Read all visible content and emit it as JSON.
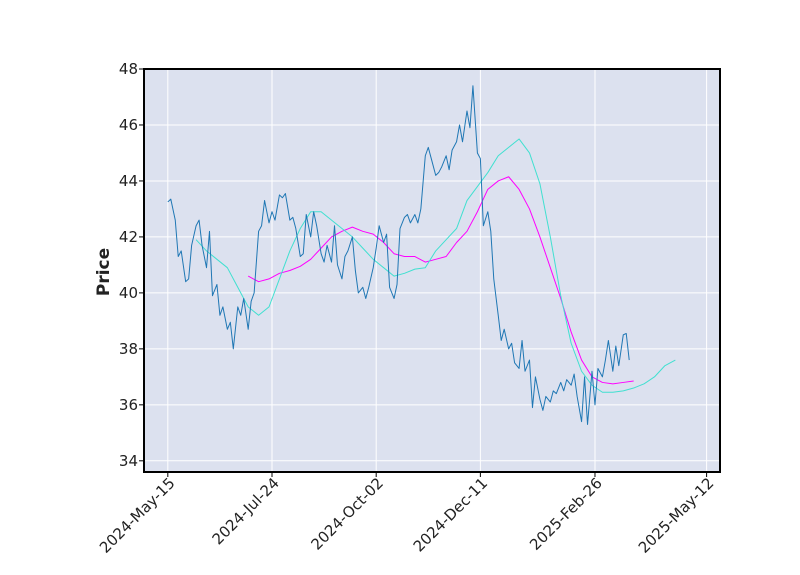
{
  "chart_data": {
    "type": "line",
    "title": "",
    "xlabel": "",
    "ylabel": "Price",
    "ylim": [
      33.6,
      48
    ],
    "yticks": [
      34,
      36,
      38,
      40,
      42,
      44,
      46,
      48
    ],
    "x_range": [
      "2024-04-29",
      "2025-05-21"
    ],
    "xticks": [
      "2024-May-15",
      "2024-Jul-24",
      "2024-Oct-02",
      "2024-Dec-11",
      "2025-Feb-26",
      "2025-May-12"
    ],
    "grid": true,
    "colors": {
      "background": "#dce1ef",
      "grid": "#ffffff",
      "close": "#1f77b4",
      "ma_short": "#40e0d0",
      "ma_long": "#ff00ff"
    },
    "series": [
      {
        "key": "close",
        "points": [
          [
            "2024-05-15",
            43.25
          ],
          [
            "2024-05-17",
            43.35
          ],
          [
            "2024-05-20",
            42.6
          ],
          [
            "2024-05-22",
            41.3
          ],
          [
            "2024-05-24",
            41.5
          ],
          [
            "2024-05-27",
            40.4
          ],
          [
            "2024-05-29",
            40.5
          ],
          [
            "2024-05-31",
            41.7
          ],
          [
            "2024-06-03",
            42.4
          ],
          [
            "2024-06-05",
            42.6
          ],
          [
            "2024-06-07",
            41.7
          ],
          [
            "2024-06-10",
            40.9
          ],
          [
            "2024-06-12",
            42.2
          ],
          [
            "2024-06-14",
            39.9
          ],
          [
            "2024-06-17",
            40.3
          ],
          [
            "2024-06-19",
            39.2
          ],
          [
            "2024-06-21",
            39.5
          ],
          [
            "2024-06-24",
            38.7
          ],
          [
            "2024-06-26",
            38.95
          ],
          [
            "2024-06-28",
            38.0
          ],
          [
            "2024-07-01",
            39.5
          ],
          [
            "2024-07-03",
            39.2
          ],
          [
            "2024-07-05",
            39.8
          ],
          [
            "2024-07-08",
            38.7
          ],
          [
            "2024-07-10",
            39.7
          ],
          [
            "2024-07-12",
            40.0
          ],
          [
            "2024-07-15",
            42.2
          ],
          [
            "2024-07-17",
            42.4
          ],
          [
            "2024-07-19",
            43.3
          ],
          [
            "2024-07-22",
            42.5
          ],
          [
            "2024-07-24",
            42.9
          ],
          [
            "2024-07-26",
            42.6
          ],
          [
            "2024-07-29",
            43.5
          ],
          [
            "2024-07-31",
            43.4
          ],
          [
            "2024-08-02",
            43.55
          ],
          [
            "2024-08-05",
            42.6
          ],
          [
            "2024-08-07",
            42.7
          ],
          [
            "2024-08-09",
            42.3
          ],
          [
            "2024-08-12",
            41.3
          ],
          [
            "2024-08-14",
            41.4
          ],
          [
            "2024-08-16",
            42.8
          ],
          [
            "2024-08-19",
            42.0
          ],
          [
            "2024-08-21",
            42.9
          ],
          [
            "2024-08-23",
            42.4
          ],
          [
            "2024-08-26",
            41.4
          ],
          [
            "2024-08-28",
            41.1
          ],
          [
            "2024-08-30",
            41.7
          ],
          [
            "2024-09-02",
            41.1
          ],
          [
            "2024-09-04",
            42.4
          ],
          [
            "2024-09-06",
            41.0
          ],
          [
            "2024-09-09",
            40.5
          ],
          [
            "2024-09-11",
            41.3
          ],
          [
            "2024-09-13",
            41.5
          ],
          [
            "2024-09-16",
            42.0
          ],
          [
            "2024-09-18",
            40.8
          ],
          [
            "2024-09-20",
            40.0
          ],
          [
            "2024-09-23",
            40.2
          ],
          [
            "2024-09-25",
            39.8
          ],
          [
            "2024-09-27",
            40.2
          ],
          [
            "2024-09-30",
            40.9
          ],
          [
            "2024-10-02",
            41.6
          ],
          [
            "2024-10-04",
            42.4
          ],
          [
            "2024-10-07",
            41.8
          ],
          [
            "2024-10-09",
            42.1
          ],
          [
            "2024-10-11",
            40.2
          ],
          [
            "2024-10-14",
            39.8
          ],
          [
            "2024-10-16",
            40.3
          ],
          [
            "2024-10-18",
            42.3
          ],
          [
            "2024-10-21",
            42.7
          ],
          [
            "2024-10-23",
            42.8
          ],
          [
            "2024-10-25",
            42.5
          ],
          [
            "2024-10-28",
            42.8
          ],
          [
            "2024-10-30",
            42.5
          ],
          [
            "2024-11-01",
            43.0
          ],
          [
            "2024-11-04",
            44.9
          ],
          [
            "2024-11-06",
            45.2
          ],
          [
            "2024-11-08",
            44.8
          ],
          [
            "2024-11-11",
            44.2
          ],
          [
            "2024-11-13",
            44.3
          ],
          [
            "2024-11-15",
            44.5
          ],
          [
            "2024-11-18",
            44.9
          ],
          [
            "2024-11-20",
            44.4
          ],
          [
            "2024-11-22",
            45.1
          ],
          [
            "2024-11-25",
            45.4
          ],
          [
            "2024-11-27",
            46.0
          ],
          [
            "2024-11-29",
            45.4
          ],
          [
            "2024-12-02",
            46.5
          ],
          [
            "2024-12-04",
            45.9
          ],
          [
            "2024-12-06",
            47.4
          ],
          [
            "2024-12-09",
            45.0
          ],
          [
            "2024-12-11",
            44.8
          ],
          [
            "2024-12-13",
            42.4
          ],
          [
            "2024-12-16",
            42.9
          ],
          [
            "2024-12-18",
            42.2
          ],
          [
            "2024-12-20",
            40.5
          ],
          [
            "2024-12-23",
            39.2
          ],
          [
            "2024-12-25",
            38.3
          ],
          [
            "2024-12-27",
            38.7
          ],
          [
            "2024-12-30",
            38.0
          ],
          [
            "2025-01-01",
            38.2
          ],
          [
            "2025-01-03",
            37.5
          ],
          [
            "2025-01-06",
            37.3
          ],
          [
            "2025-01-08",
            38.3
          ],
          [
            "2025-01-10",
            37.2
          ],
          [
            "2025-01-13",
            37.6
          ],
          [
            "2025-01-15",
            35.9
          ],
          [
            "2025-01-17",
            37.0
          ],
          [
            "2025-01-20",
            36.2
          ],
          [
            "2025-01-22",
            35.8
          ],
          [
            "2025-01-24",
            36.3
          ],
          [
            "2025-01-27",
            36.1
          ],
          [
            "2025-01-29",
            36.5
          ],
          [
            "2025-01-31",
            36.4
          ],
          [
            "2025-02-03",
            36.8
          ],
          [
            "2025-02-05",
            36.5
          ],
          [
            "2025-02-07",
            36.9
          ],
          [
            "2025-02-10",
            36.7
          ],
          [
            "2025-02-12",
            37.1
          ],
          [
            "2025-02-14",
            36.3
          ],
          [
            "2025-02-17",
            35.4
          ],
          [
            "2025-02-19",
            37.0
          ],
          [
            "2025-02-21",
            35.3
          ],
          [
            "2025-02-24",
            37.2
          ],
          [
            "2025-02-26",
            36.0
          ],
          [
            "2025-02-28",
            37.3
          ],
          [
            "2025-03-03",
            37.0
          ],
          [
            "2025-03-05",
            37.6
          ],
          [
            "2025-03-07",
            38.3
          ],
          [
            "2025-03-10",
            37.2
          ],
          [
            "2025-03-12",
            38.1
          ],
          [
            "2025-03-14",
            37.4
          ],
          [
            "2025-03-17",
            38.5
          ],
          [
            "2025-03-19",
            38.55
          ],
          [
            "2025-03-21",
            37.6
          ]
        ]
      },
      {
        "key": "ma_short",
        "points": [
          [
            "2024-06-03",
            41.9
          ],
          [
            "2024-06-10",
            41.5
          ],
          [
            "2024-06-17",
            41.2
          ],
          [
            "2024-06-24",
            40.9
          ],
          [
            "2024-07-01",
            40.2
          ],
          [
            "2024-07-08",
            39.5
          ],
          [
            "2024-07-15",
            39.2
          ],
          [
            "2024-07-22",
            39.5
          ],
          [
            "2024-07-29",
            40.5
          ],
          [
            "2024-08-05",
            41.5
          ],
          [
            "2024-08-12",
            42.3
          ],
          [
            "2024-08-19",
            42.9
          ],
          [
            "2024-08-26",
            42.9
          ],
          [
            "2024-09-02",
            42.6
          ],
          [
            "2024-09-09",
            42.3
          ],
          [
            "2024-09-16",
            42.0
          ],
          [
            "2024-09-23",
            41.6
          ],
          [
            "2024-09-30",
            41.2
          ],
          [
            "2024-10-07",
            40.9
          ],
          [
            "2024-10-14",
            40.6
          ],
          [
            "2024-10-21",
            40.7
          ],
          [
            "2024-10-28",
            40.85
          ],
          [
            "2024-11-04",
            40.9
          ],
          [
            "2024-11-11",
            41.5
          ],
          [
            "2024-11-18",
            41.9
          ],
          [
            "2024-11-25",
            42.3
          ],
          [
            "2024-12-02",
            43.3
          ],
          [
            "2024-12-09",
            43.8
          ],
          [
            "2024-12-16",
            44.3
          ],
          [
            "2024-12-23",
            44.9
          ],
          [
            "2024-12-30",
            45.2
          ],
          [
            "2025-01-06",
            45.5
          ],
          [
            "2025-01-13",
            45.0
          ],
          [
            "2025-01-20",
            43.9
          ],
          [
            "2025-01-27",
            42.0
          ],
          [
            "2025-02-03",
            39.9
          ],
          [
            "2025-02-10",
            38.2
          ],
          [
            "2025-02-17",
            37.2
          ],
          [
            "2025-02-24",
            36.7
          ],
          [
            "2025-03-03",
            36.45
          ],
          [
            "2025-03-10",
            36.45
          ],
          [
            "2025-03-17",
            36.5
          ],
          [
            "2025-03-24",
            36.6
          ],
          [
            "2025-03-31",
            36.75
          ],
          [
            "2025-04-07",
            37.0
          ],
          [
            "2025-04-14",
            37.4
          ],
          [
            "2025-04-21",
            37.6
          ]
        ]
      },
      {
        "key": "ma_long",
        "points": [
          [
            "2024-07-08",
            40.6
          ],
          [
            "2024-07-15",
            40.4
          ],
          [
            "2024-07-22",
            40.5
          ],
          [
            "2024-07-29",
            40.7
          ],
          [
            "2024-08-05",
            40.8
          ],
          [
            "2024-08-12",
            40.95
          ],
          [
            "2024-08-19",
            41.2
          ],
          [
            "2024-08-26",
            41.6
          ],
          [
            "2024-09-02",
            42.0
          ],
          [
            "2024-09-09",
            42.2
          ],
          [
            "2024-09-16",
            42.35
          ],
          [
            "2024-09-23",
            42.2
          ],
          [
            "2024-09-30",
            42.1
          ],
          [
            "2024-10-07",
            41.8
          ],
          [
            "2024-10-14",
            41.4
          ],
          [
            "2024-10-21",
            41.3
          ],
          [
            "2024-10-28",
            41.3
          ],
          [
            "2024-11-04",
            41.1
          ],
          [
            "2024-11-11",
            41.2
          ],
          [
            "2024-11-18",
            41.3
          ],
          [
            "2024-11-25",
            41.8
          ],
          [
            "2024-12-02",
            42.2
          ],
          [
            "2024-12-09",
            42.9
          ],
          [
            "2024-12-16",
            43.7
          ],
          [
            "2024-12-23",
            44.0
          ],
          [
            "2024-12-30",
            44.15
          ],
          [
            "2025-01-06",
            43.7
          ],
          [
            "2025-01-13",
            43.0
          ],
          [
            "2025-01-20",
            42.0
          ],
          [
            "2025-01-27",
            40.9
          ],
          [
            "2025-02-03",
            39.8
          ],
          [
            "2025-02-10",
            38.6
          ],
          [
            "2025-02-17",
            37.6
          ],
          [
            "2025-02-24",
            37.0
          ],
          [
            "2025-03-03",
            36.8
          ],
          [
            "2025-03-10",
            36.75
          ],
          [
            "2025-03-17",
            36.8
          ],
          [
            "2025-03-24",
            36.85
          ]
        ]
      }
    ]
  }
}
